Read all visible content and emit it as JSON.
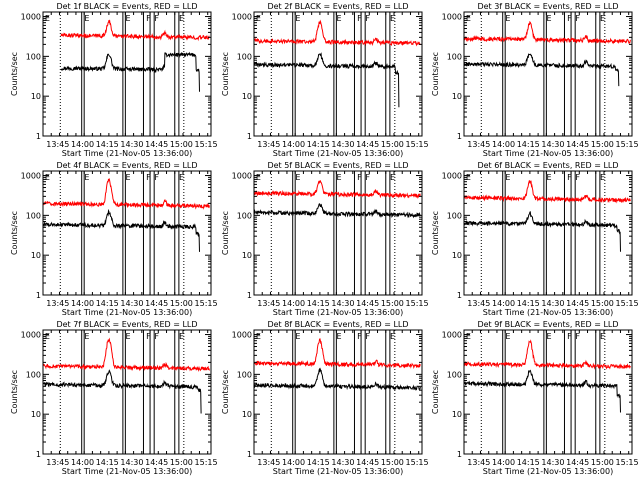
{
  "colors": {
    "events": "#000000",
    "lld": "#ff0000",
    "background": "#ffffff",
    "axis": "#000000"
  },
  "common": {
    "xlabel": "Start Time (21-Nov-05 13:36:00)",
    "ylabel": "Counts/sec",
    "x_ticks": [
      {
        "t": 9,
        "label": "13:45"
      },
      {
        "t": 24,
        "label": "14:00"
      },
      {
        "t": 39,
        "label": "14:15"
      },
      {
        "t": 54,
        "label": "14:30"
      },
      {
        "t": 69,
        "label": "14:45"
      },
      {
        "t": 84,
        "label": "15:00"
      },
      {
        "t": 99,
        "label": "15:15"
      }
    ],
    "x_range": [
      0,
      102
    ],
    "y_ticks": [
      {
        "v": 1,
        "label": "1"
      },
      {
        "v": 10,
        "label": "10"
      },
      {
        "v": 100,
        "label": "100"
      },
      {
        "v": 1000,
        "label": "1000"
      }
    ],
    "y_range": [
      1,
      1300
    ],
    "y_scale": "log",
    "dotted_lines": [
      10.5,
      85.5
    ],
    "solid_lines": [
      23.5,
      25,
      48.5,
      50,
      61,
      65,
      67.5,
      80,
      82.5
    ],
    "markers": [
      {
        "t": 0.5,
        "label": "E"
      },
      {
        "t": 24.5,
        "label": "E"
      },
      {
        "t": 49.5,
        "label": "E"
      },
      {
        "t": 62,
        "label": "F"
      },
      {
        "t": 67,
        "label": "F"
      },
      {
        "t": 82,
        "label": "E"
      }
    ]
  },
  "chart_data": [
    {
      "type": "line",
      "title": "Det 1f BLACK = Events, RED = LLD",
      "t_start": 11,
      "t_end": 101,
      "series": [
        {
          "name": "Events",
          "t_end": 95,
          "base": 48,
          "peak": 112,
          "drops": [
            [
              74,
              110
            ],
            [
              93,
              45
            ],
            [
              95,
              12
            ]
          ]
        },
        {
          "name": "LLD",
          "t_end": 101,
          "base": 320,
          "peak": 720,
          "drops": [
            [
              88,
              300
            ]
          ]
        }
      ]
    },
    {
      "type": "line",
      "title": "Det 2f BLACK = Events, RED = LLD",
      "t_start": 0,
      "t_end": 101,
      "series": [
        {
          "name": "Events",
          "t_end": 88,
          "base": 58,
          "peak": 112,
          "drops": [
            [
              86,
              38
            ],
            [
              88,
              5
            ]
          ]
        },
        {
          "name": "LLD",
          "t_end": 101,
          "base": 230,
          "peak": 700,
          "drops": []
        }
      ]
    },
    {
      "type": "line",
      "title": "Det 3f BLACK = Events, RED = LLD",
      "t_start": 0,
      "t_end": 101,
      "series": [
        {
          "name": "Events",
          "t_end": 94,
          "base": 60,
          "peak": 118,
          "drops": [
            [
              92,
              45
            ],
            [
              94,
              18
            ]
          ]
        },
        {
          "name": "LLD",
          "t_end": 101,
          "base": 260,
          "peak": 660,
          "drops": []
        }
      ]
    },
    {
      "type": "line",
      "title": "Det 4f BLACK = Events, RED = LLD",
      "t_start": 0,
      "t_end": 101,
      "series": [
        {
          "name": "Events",
          "t_end": 95,
          "base": 55,
          "peak": 118,
          "drops": [
            [
              93,
              35
            ],
            [
              95,
              12
            ]
          ]
        },
        {
          "name": "LLD",
          "t_end": 101,
          "base": 185,
          "peak": 760,
          "drops": []
        }
      ]
    },
    {
      "type": "line",
      "title": "Det 5f BLACK = Events, RED = LLD",
      "t_start": 0,
      "t_end": 101,
      "series": [
        {
          "name": "Events",
          "t_end": 101,
          "base": 110,
          "peak": 185,
          "drops": []
        },
        {
          "name": "LLD",
          "t_end": 101,
          "base": 340,
          "peak": 720,
          "drops": []
        }
      ]
    },
    {
      "type": "line",
      "title": "Det 6f BLACK = Events, RED = LLD",
      "t_start": 0,
      "t_end": 101,
      "series": [
        {
          "name": "Events",
          "t_end": 95,
          "base": 60,
          "peak": 110,
          "drops": [
            [
              93,
              40
            ],
            [
              95,
              12
            ]
          ]
        },
        {
          "name": "LLD",
          "t_end": 101,
          "base": 260,
          "peak": 700,
          "drops": []
        }
      ]
    },
    {
      "type": "line",
      "title": "Det 7f BLACK = Events, RED = LLD",
      "t_start": 0,
      "t_end": 101,
      "series": [
        {
          "name": "Events",
          "t_end": 96,
          "base": 52,
          "peak": 115,
          "drops": [
            [
              94,
              40
            ],
            [
              96,
              10
            ]
          ]
        },
        {
          "name": "LLD",
          "t_end": 101,
          "base": 150,
          "peak": 760,
          "drops": []
        }
      ]
    },
    {
      "type": "line",
      "title": "Det 8f BLACK = Events, RED = LLD",
      "t_start": 0,
      "t_end": 101,
      "series": [
        {
          "name": "Events",
          "t_end": 101,
          "base": 50,
          "peak": 125,
          "drops": []
        },
        {
          "name": "LLD",
          "t_end": 101,
          "base": 180,
          "peak": 720,
          "drops": []
        }
      ]
    },
    {
      "type": "line",
      "title": "Det 9f BLACK = Events, RED = LLD",
      "t_start": 0,
      "t_end": 101,
      "series": [
        {
          "name": "Events",
          "t_end": 95,
          "base": 55,
          "peak": 118,
          "drops": [
            [
              93,
              30
            ],
            [
              95,
              12
            ]
          ]
        },
        {
          "name": "LLD",
          "t_end": 101,
          "base": 170,
          "peak": 660,
          "drops": []
        }
      ]
    }
  ]
}
